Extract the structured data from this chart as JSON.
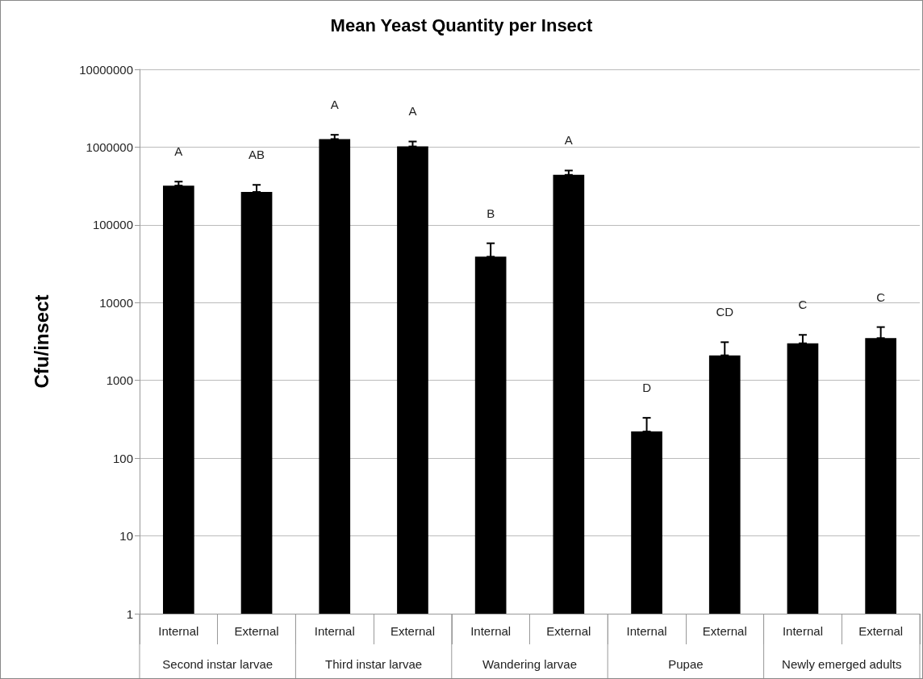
{
  "chart_data": {
    "type": "bar",
    "title": "Mean Yeast Quantity per Insect",
    "ylabel": "Cfu/insect",
    "categories": [
      "Internal",
      "External",
      "Internal",
      "External",
      "Internal",
      "External",
      "Internal",
      "External",
      "Internal",
      "External"
    ],
    "annotations": [
      "Second instar larvae",
      "Third instar larvae",
      "Wandering larvae",
      "Pupae",
      "Newly emerged adults"
    ],
    "values": [
      320000,
      265000,
      1270000,
      1020000,
      39000,
      440000,
      220,
      2100,
      3000,
      3500
    ],
    "errors": [
      [
        320000,
        360000
      ],
      [
        265000,
        327000
      ],
      [
        1270000,
        1440000
      ],
      [
        1020000,
        1180000
      ],
      [
        39000,
        58000
      ],
      [
        440000,
        500000
      ],
      [
        220,
        330
      ],
      [
        2100,
        3100
      ],
      [
        3000,
        3850
      ],
      [
        3500,
        4850
      ]
    ],
    "value_labels": [
      "A",
      "AB",
      "A",
      "A",
      "B",
      "A",
      "D",
      "CD",
      "C",
      "C"
    ],
    "color": "#000000",
    "log": "y",
    "ylim": [
      1,
      10000000
    ],
    "yticks": [
      1,
      10,
      100,
      1000,
      10000,
      100000,
      1000000,
      10000000
    ],
    "grid": "y"
  }
}
